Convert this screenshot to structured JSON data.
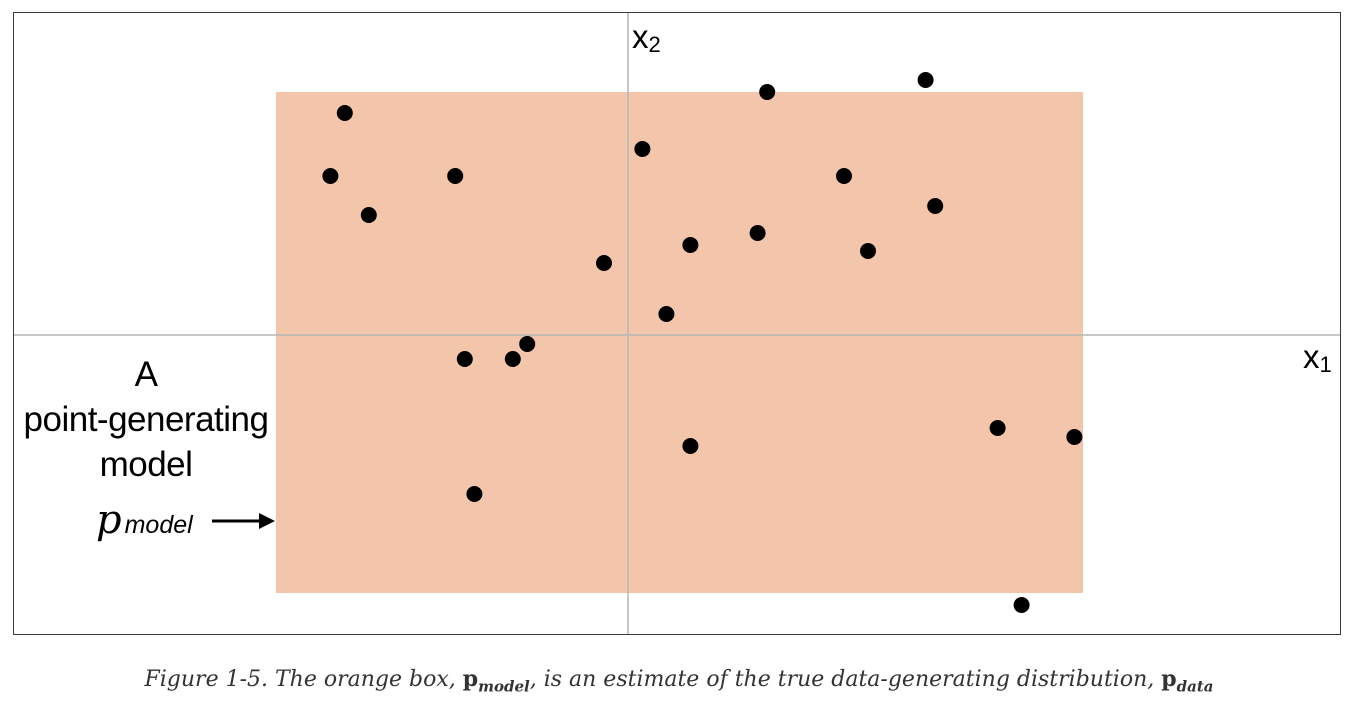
{
  "axes": {
    "x_label": "x",
    "x_subscript": "1",
    "y_label": "x",
    "y_subscript": "2"
  },
  "model_box": {
    "label_lines": [
      "A",
      "point-generating",
      "model"
    ],
    "symbol": "p",
    "symbol_subscript": "model",
    "fill_color": "#f3c6ac"
  },
  "points": [
    [
      -0.59,
      0.74
    ],
    [
      -0.62,
      0.53
    ],
    [
      -0.54,
      0.4
    ],
    [
      -0.36,
      0.53
    ],
    [
      -0.24,
      -0.08
    ],
    [
      -0.21,
      -0.03
    ],
    [
      -0.34,
      -0.08
    ],
    [
      -0.32,
      -0.53
    ],
    [
      -0.05,
      0.24
    ],
    [
      0.03,
      0.62
    ],
    [
      0.08,
      0.07
    ],
    [
      0.13,
      0.3
    ],
    [
      0.27,
      0.34
    ],
    [
      0.29,
      0.81
    ],
    [
      0.45,
      0.53
    ],
    [
      0.5,
      0.28
    ],
    [
      0.62,
      0.85
    ],
    [
      0.64,
      0.43
    ],
    [
      0.77,
      -0.31
    ],
    [
      0.93,
      -0.34
    ],
    [
      0.82,
      -0.9
    ],
    [
      0.13,
      -0.37
    ]
  ],
  "point_color": "#000000",
  "caption": {
    "prefix": "Figure 1-5. The orange box, ",
    "p1": "p",
    "p1_sub": "model",
    "middle": ", is an estimate of the true data-generating distribution, ",
    "p2": "p",
    "p2_sub": "data"
  }
}
